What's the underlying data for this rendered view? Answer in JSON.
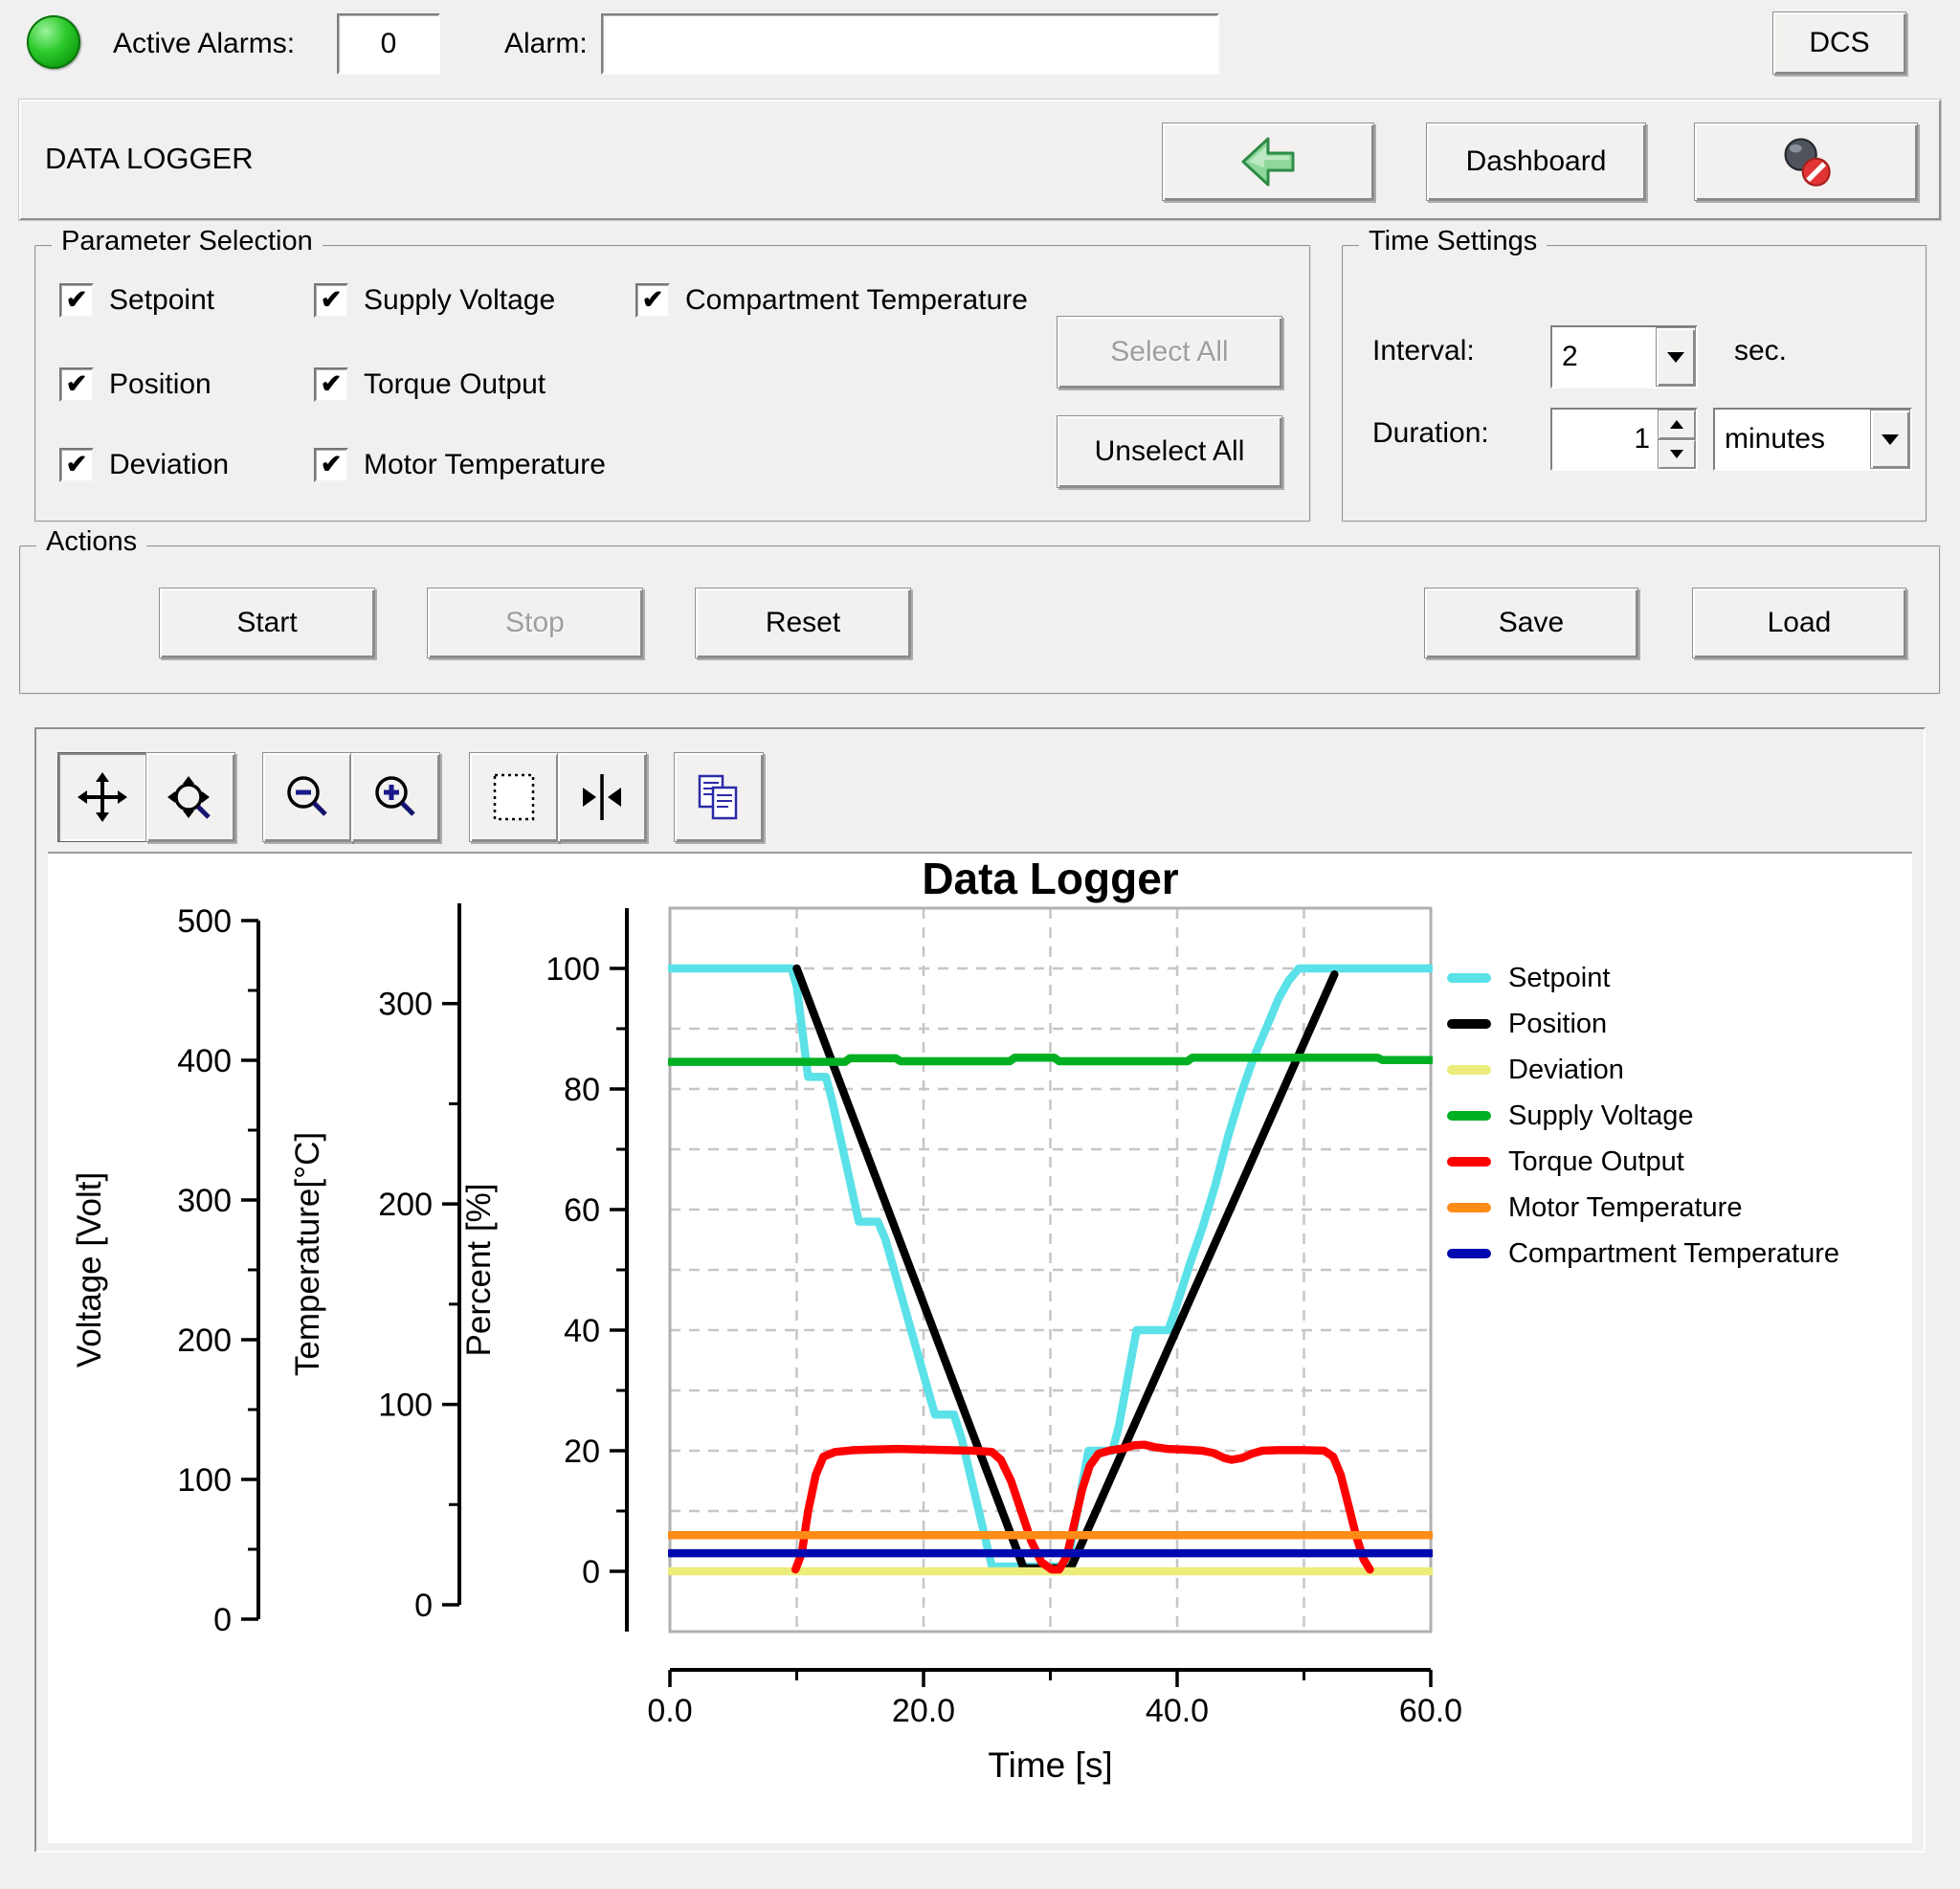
{
  "alarm_bar": {
    "active_alarms_label": "Active Alarms:",
    "active_alarms_count": "0",
    "alarm_label": "Alarm:",
    "alarm_value": "",
    "dcs_button": "DCS",
    "led_color": "#22c522"
  },
  "title_bar": {
    "title": "DATA LOGGER",
    "back_button_icon": "back-arrow-icon",
    "dashboard_button": "Dashboard",
    "logging_disabled_icon": "logging-disabled-icon"
  },
  "parameter_selection": {
    "title": "Parameter Selection",
    "items": [
      {
        "label": "Setpoint",
        "checked": true
      },
      {
        "label": "Position",
        "checked": true
      },
      {
        "label": "Deviation",
        "checked": true
      },
      {
        "label": "Supply Voltage",
        "checked": true
      },
      {
        "label": "Torque Output",
        "checked": true
      },
      {
        "label": "Motor Temperature",
        "checked": true
      },
      {
        "label": "Compartment Temperature",
        "checked": true
      }
    ],
    "select_all_button": "Select All",
    "select_all_enabled": false,
    "unselect_all_button": "Unselect All"
  },
  "time_settings": {
    "title": "Time Settings",
    "interval_label": "Interval:",
    "interval_value": "2",
    "interval_unit": "sec.",
    "duration_label": "Duration:",
    "duration_value": "1",
    "duration_unit": "minutes"
  },
  "actions": {
    "title": "Actions",
    "start": "Start",
    "stop": "Stop",
    "stop_enabled": false,
    "reset": "Reset",
    "save": "Save",
    "load": "Load"
  },
  "chart_toolbar": {
    "buttons": [
      "pan",
      "zoom-pan",
      "zoom-out",
      "zoom-in",
      "zoom-box",
      "zoom-x-axis",
      "copy"
    ],
    "active_button": "pan"
  },
  "chart_data": {
    "type": "line",
    "title": "Data Logger",
    "xlabel": "Time [s]",
    "grid": true,
    "legend_position": "right",
    "x_axis": {
      "range": [
        0,
        60
      ],
      "major_ticks": [
        0,
        20,
        40,
        60
      ],
      "major_labels": [
        "0.0",
        "20.0",
        "40.0",
        "60.0"
      ],
      "minor_ticks": [
        10,
        30,
        50
      ]
    },
    "y_axes": [
      {
        "id": "voltage",
        "label": "Voltage [Volt]",
        "range": [
          0,
          500
        ],
        "major_ticks": [
          0,
          100,
          200,
          300,
          400,
          500
        ],
        "minor_ticks": [
          50,
          150,
          250,
          350,
          450
        ]
      },
      {
        "id": "temperature",
        "label": "Temperature[°C]",
        "range": [
          0,
          350
        ],
        "major_ticks": [
          0,
          100,
          200,
          300
        ],
        "minor_ticks": [
          50,
          150,
          250
        ]
      },
      {
        "id": "percent",
        "label": "Percent [%]",
        "range": [
          -10,
          110
        ],
        "major_ticks": [
          0,
          20,
          40,
          60,
          80,
          100
        ],
        "minor_ticks": [
          10,
          30,
          50,
          70,
          90
        ]
      }
    ],
    "gridlines": {
      "x": [
        10,
        20,
        30,
        40,
        50
      ],
      "y_percent": [
        10,
        20,
        30,
        40,
        50,
        60,
        70,
        80,
        90,
        100
      ]
    },
    "series": [
      {
        "name": "Setpoint",
        "color": "#5BE1E8",
        "display_axis": "percent",
        "points": [
          [
            0,
            100
          ],
          [
            9.6,
            100
          ],
          [
            10.0,
            97
          ],
          [
            10.9,
            82
          ],
          [
            12.3,
            82
          ],
          [
            12.8,
            78
          ],
          [
            14.9,
            58
          ],
          [
            16.4,
            58
          ],
          [
            17.0,
            55
          ],
          [
            20.9,
            26
          ],
          [
            22.4,
            26
          ],
          [
            23.0,
            22
          ],
          [
            25.4,
            0.8
          ],
          [
            31.1,
            0.8
          ],
          [
            31.6,
            4
          ],
          [
            33.0,
            20
          ],
          [
            34.9,
            20
          ],
          [
            35.4,
            24
          ],
          [
            36.8,
            40
          ],
          [
            39.3,
            40
          ],
          [
            39.8,
            43
          ],
          [
            41.0,
            51
          ],
          [
            42.0,
            57
          ],
          [
            43.0,
            64
          ],
          [
            44.0,
            72
          ],
          [
            45.0,
            79
          ],
          [
            46.0,
            85
          ],
          [
            47.0,
            90
          ],
          [
            48.0,
            95
          ],
          [
            48.8,
            98
          ],
          [
            49.6,
            100
          ],
          [
            60,
            100
          ]
        ]
      },
      {
        "name": "Position",
        "color": "#000000",
        "display_axis": "percent",
        "points": [
          [
            10.0,
            100
          ],
          [
            27.9,
            0.5
          ],
          [
            31.6,
            0.5
          ],
          [
            52.4,
            99
          ]
        ]
      },
      {
        "name": "Deviation",
        "color": "#ECEC7A",
        "display_axis": "percent",
        "points": [
          [
            0,
            0
          ],
          [
            60,
            0
          ]
        ]
      },
      {
        "name": "Supply Voltage",
        "color": "#00B022",
        "display_axis": "percent",
        "points": [
          [
            0,
            84.5
          ],
          [
            13.8,
            84.5
          ],
          [
            14.2,
            85.1
          ],
          [
            17.8,
            85.1
          ],
          [
            18.2,
            84.6
          ],
          [
            26.8,
            84.6
          ],
          [
            27.2,
            85.2
          ],
          [
            30.3,
            85.2
          ],
          [
            30.7,
            84.6
          ],
          [
            40.8,
            84.6
          ],
          [
            41.2,
            85.2
          ],
          [
            55.8,
            85.2
          ],
          [
            56.2,
            84.8
          ],
          [
            60,
            84.8
          ]
        ]
      },
      {
        "name": "Torque Output",
        "color": "#FF0000",
        "display_axis": "percent",
        "points": [
          [
            9.9,
            0.3
          ],
          [
            10.4,
            3
          ],
          [
            10.9,
            10
          ],
          [
            11.5,
            16
          ],
          [
            12.1,
            19
          ],
          [
            13,
            19.8
          ],
          [
            14.5,
            20.1
          ],
          [
            16,
            20.2
          ],
          [
            18,
            20.3
          ],
          [
            20,
            20.2
          ],
          [
            22,
            20.1
          ],
          [
            24,
            20
          ],
          [
            25.4,
            19.8
          ],
          [
            26.1,
            18.5
          ],
          [
            26.9,
            15
          ],
          [
            27.7,
            10
          ],
          [
            28.5,
            5
          ],
          [
            29.3,
            1.5
          ],
          [
            30.1,
            0.3
          ],
          [
            30.7,
            0.3
          ],
          [
            31.3,
            2.5
          ],
          [
            31.9,
            8
          ],
          [
            32.5,
            13.5
          ],
          [
            33.1,
            17.5
          ],
          [
            33.8,
            19.5
          ],
          [
            34.8,
            20.1
          ],
          [
            35.8,
            20.4
          ],
          [
            36.6,
            20.9
          ],
          [
            37.4,
            21
          ],
          [
            38.2,
            20.6
          ],
          [
            39.2,
            20.3
          ],
          [
            40.5,
            20.2
          ],
          [
            42.0,
            20
          ],
          [
            42.9,
            19.6
          ],
          [
            43.7,
            18.8
          ],
          [
            44.3,
            18.5
          ],
          [
            45.1,
            18.8
          ],
          [
            45.9,
            19.5
          ],
          [
            46.7,
            20
          ],
          [
            48.0,
            20.1
          ],
          [
            50.0,
            20.1
          ],
          [
            51.6,
            20
          ],
          [
            52.3,
            19
          ],
          [
            52.9,
            16
          ],
          [
            53.5,
            11
          ],
          [
            54.1,
            6
          ],
          [
            54.7,
            2
          ],
          [
            55.2,
            0.3
          ]
        ]
      },
      {
        "name": "Motor Temperature",
        "color": "#FF8C16",
        "display_axis": "percent",
        "points": [
          [
            0,
            6
          ],
          [
            60,
            6
          ]
        ]
      },
      {
        "name": "Compartment Temperature",
        "color": "#0009B0",
        "display_axis": "percent",
        "points": [
          [
            0,
            3
          ],
          [
            60,
            3
          ]
        ]
      }
    ]
  }
}
